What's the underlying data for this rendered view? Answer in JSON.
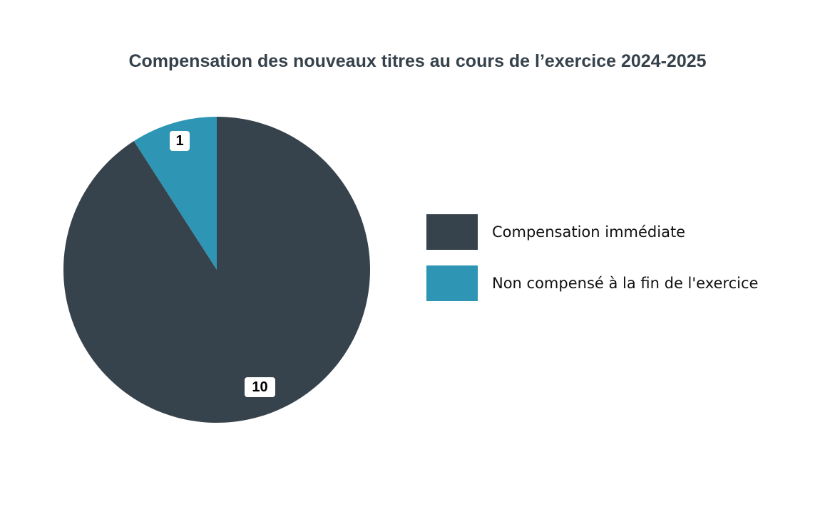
{
  "chart_data": {
    "type": "pie",
    "title": "Compensation des nouveaux titres au cours de l’exercice 2024-2025",
    "categories": [
      "Compensation immédiate",
      "Non compensé à la fin de l'exercice"
    ],
    "values": [
      10,
      1
    ],
    "colors": [
      "#37434c",
      "#2e95b5"
    ],
    "data_labels": [
      "10",
      "1"
    ],
    "legend_position": "right"
  },
  "title": "Compensation des nouveaux titres au cours de l’exercice 2024-2025",
  "labels": {
    "slice0": "10",
    "slice1": "1"
  },
  "legend": [
    {
      "label": "Compensation immédiate",
      "color": "#37434c"
    },
    {
      "label": "Non compensé à la fin de l'exercice",
      "color": "#2e95b5"
    }
  ]
}
